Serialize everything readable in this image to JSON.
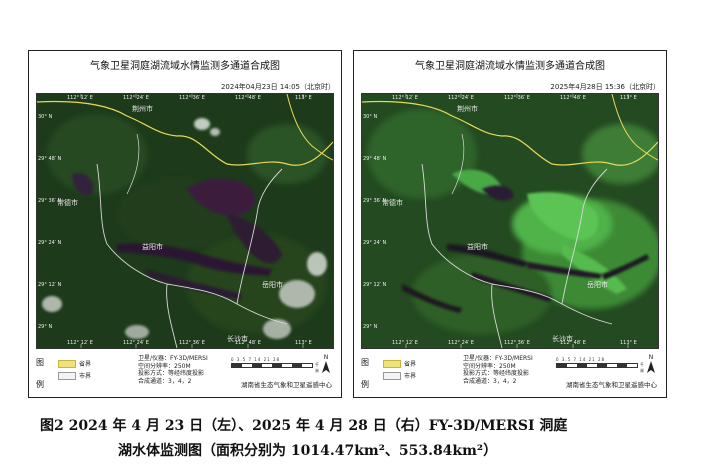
{
  "panels": [
    {
      "title": "气象卫星洞庭湖流域水情监测多通道合成图",
      "timestamp": "2024年04月23日  14:05（北京时）",
      "lon_ticks": [
        "112° 12′ E",
        "112° 24′ E",
        "112° 36′ E",
        "112° 48′ E",
        "113° E"
      ],
      "bottom_ticks": [
        "112° 12′ E",
        "112° 24′ E",
        "112° 36′ E",
        "112° 48′ E",
        "113° E"
      ],
      "lat_ticks": [
        "30° N",
        "29° 48′ N",
        "29° 36′ N",
        "29° 24′ N",
        "29° 12′ N",
        "29° N"
      ],
      "cities": [
        "荆州市",
        "常德市",
        "益阳市",
        "岳阳市",
        "长沙市"
      ]
    },
    {
      "title": "气象卫星洞庭湖流域水情监测多通道合成图",
      "timestamp": "2025年4月28日  15:36（北京时）",
      "lon_ticks": [
        "112° 12′ E",
        "112° 24′ E",
        "112° 36′ E",
        "112° 48′ E",
        "113° E"
      ],
      "bottom_ticks": [
        "112° 12′ E",
        "112° 24′ E",
        "112° 36′ E",
        "112° 48′ E",
        "113° E"
      ],
      "lat_ticks": [
        "30° N",
        "29° 48′ N",
        "29° 36′ N",
        "29° 24′ N",
        "29° 12′ N",
        "29° N"
      ],
      "cities": [
        "荆州市",
        "常德市",
        "益阳市",
        "岳阳市",
        "长沙市"
      ]
    }
  ],
  "legend": {
    "title_top": "图",
    "title_bottom": "例",
    "province_label": "省界",
    "city_label": "市界",
    "satellite": "卫星/仪器：FY-3D/MERSI",
    "resolution": "空间分辨率：250M",
    "projection": "投影方式：等经纬度投影",
    "channels": "合成通道：3，4，2",
    "scale_labels": "0 3.5 7   14   21   28",
    "scale_unit": "千米",
    "north": "N",
    "org": "湖南省生态气象和卫星遥感中心"
  },
  "caption": {
    "line1": "图2   2024 年 4 月 23 日（左）、2025 年 4 月 28 日（右）FY-3D/MERSI 洞庭",
    "line2": "湖水体监测图（面积分别为 1014.47km²、553.84km²）"
  },
  "colors": {
    "land_dark": "#1c3a1a",
    "land_mid": "#2f5a2a",
    "water_2024": "#3a1f3c",
    "water_2025": "#2a1a30",
    "bright_veg": "#4fb34a",
    "province_border": "#e8d85a",
    "city_border": "#d9d9d9"
  }
}
